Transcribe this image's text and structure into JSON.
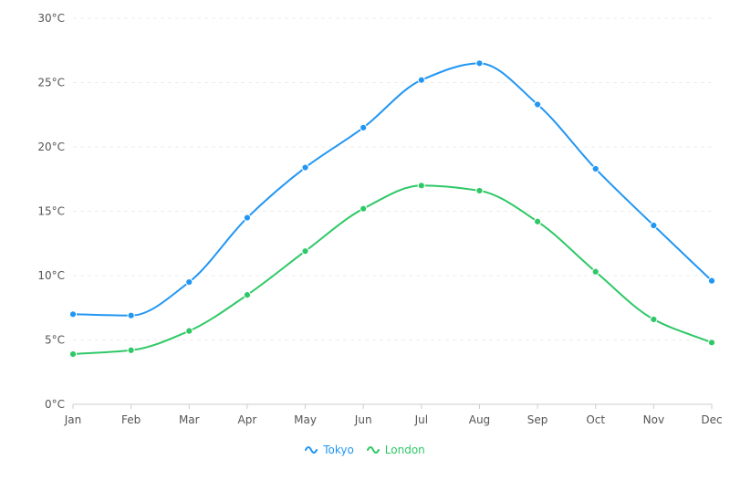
{
  "chart_data": {
    "type": "line",
    "title": "",
    "xlabel": "",
    "ylabel": "",
    "categories": [
      "Jan",
      "Feb",
      "Mar",
      "Apr",
      "May",
      "Jun",
      "Jul",
      "Aug",
      "Sep",
      "Oct",
      "Nov",
      "Dec"
    ],
    "ylim": [
      0,
      30
    ],
    "yticks": [
      0,
      5,
      10,
      15,
      20,
      25,
      30
    ],
    "ytick_labels": [
      "0°C",
      "5°C",
      "10°C",
      "15°C",
      "20°C",
      "25°C",
      "30°C"
    ],
    "grid": true,
    "legend_position": "bottom-center",
    "series": [
      {
        "name": "Tokyo",
        "color": "#2196f3",
        "values": [
          7.0,
          6.9,
          9.5,
          14.5,
          18.4,
          21.5,
          25.2,
          26.5,
          23.3,
          18.3,
          13.9,
          9.6
        ]
      },
      {
        "name": "London",
        "color": "#2ec866",
        "values": [
          3.9,
          4.2,
          5.7,
          8.5,
          11.9,
          15.2,
          17.0,
          16.6,
          14.2,
          10.3,
          6.6,
          4.8
        ]
      }
    ]
  }
}
